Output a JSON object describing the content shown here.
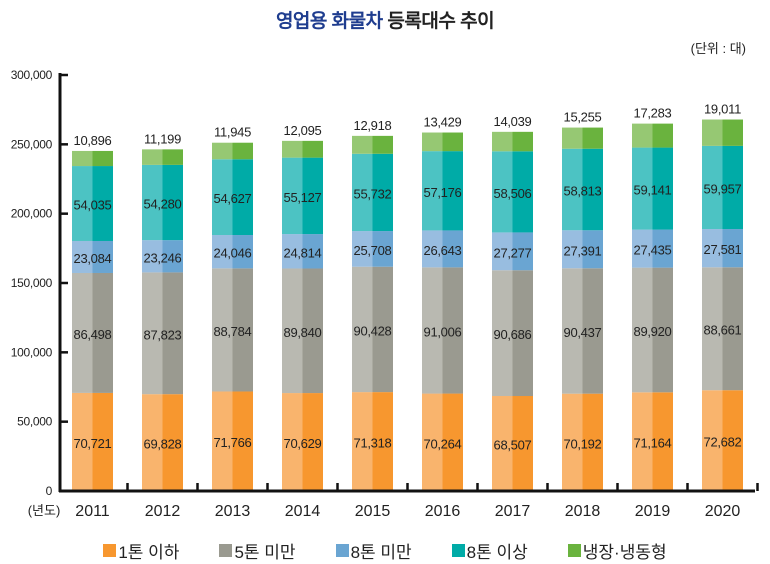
{
  "header": {
    "title_highlight": "영업용 화물차",
    "title_rest": "등록대수 추이",
    "unit": "(단위 : 대)"
  },
  "chart_data": {
    "type": "bar",
    "stacked": true,
    "title": "영업용 화물차 등록대수 추이",
    "unit_label": "(단위 : 대)",
    "xlabel": "(년도)",
    "ylabel": "",
    "ylim": [
      0,
      300000
    ],
    "yticks": [
      0,
      50000,
      100000,
      150000,
      200000,
      250000,
      300000
    ],
    "ytick_labels": [
      "0",
      "50,000",
      "100,000",
      "150,000",
      "200,000",
      "250,000",
      "300,000"
    ],
    "categories": [
      "2011",
      "2012",
      "2013",
      "2014",
      "2015",
      "2016",
      "2017",
      "2018",
      "2019",
      "2020"
    ],
    "legend_position": "bottom",
    "grid": false,
    "series": [
      {
        "name": "1톤 이하",
        "color": "#f7972f",
        "light": "#f9b46d",
        "values": [
          70721,
          69828,
          71766,
          70629,
          71318,
          70264,
          68507,
          70192,
          71164,
          72682
        ]
      },
      {
        "name": "5톤 미만",
        "color": "#9a9a90",
        "light": "#b9b9b1",
        "values": [
          86498,
          87823,
          88784,
          89840,
          90428,
          91006,
          90686,
          90437,
          89920,
          88661
        ]
      },
      {
        "name": "8톤 미만",
        "color": "#6aa5d2",
        "light": "#98bde0",
        "values": [
          23084,
          23246,
          24046,
          24814,
          25708,
          26643,
          27277,
          27391,
          27435,
          27581
        ]
      },
      {
        "name": "8톤 이상",
        "color": "#00aba7",
        "light": "#4cc3c3",
        "values": [
          54035,
          54280,
          54627,
          55127,
          55732,
          57176,
          58506,
          58813,
          59141,
          59957
        ]
      },
      {
        "name": "냉장·냉동형",
        "color": "#6ab33e",
        "light": "#96c873",
        "values": [
          10896,
          11199,
          11945,
          12095,
          12918,
          13429,
          14039,
          15255,
          17283,
          19011
        ]
      }
    ]
  }
}
